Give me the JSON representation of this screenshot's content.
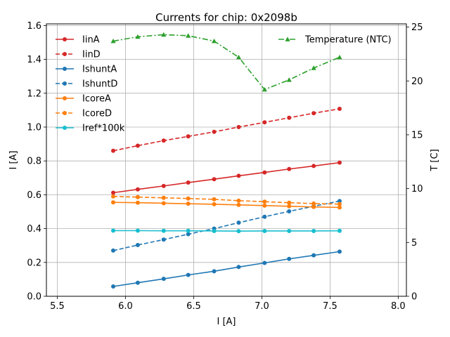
{
  "chart_data": {
    "type": "line",
    "title": "Currents for chip: 0x2098b",
    "xlabel": "I [A]",
    "ylabel": "I [A]",
    "y2label": "T [C]",
    "xlim": [
      5.42,
      8.06
    ],
    "ylim": [
      0.0,
      1.61
    ],
    "y2lim": [
      0.0,
      25.3
    ],
    "xticks": [
      5.5,
      6.0,
      6.5,
      7.0,
      7.5,
      8.0
    ],
    "xtick_labels": [
      "5.5",
      "6.0",
      "6.5",
      "7.0",
      "7.5",
      "8.0"
    ],
    "yticks": [
      0.0,
      0.2,
      0.4,
      0.6,
      0.8,
      1.0,
      1.2,
      1.4,
      1.6
    ],
    "ytick_labels": [
      "0.0",
      "0.2",
      "0.4",
      "0.6",
      "0.8",
      "1.0",
      "1.2",
      "1.4",
      "1.6"
    ],
    "y2ticks": [
      0,
      5,
      10,
      15,
      20,
      25
    ],
    "y2tick_labels": [
      "0",
      "5",
      "10",
      "15",
      "20",
      "25"
    ],
    "grid": true,
    "legend_left_position": "upper-left",
    "legend_right_position": "upper-right",
    "x": [
      5.91,
      6.09,
      6.28,
      6.46,
      6.65,
      6.83,
      7.02,
      7.2,
      7.38,
      7.57
    ],
    "series": [
      {
        "name": "IinA",
        "axis": "left",
        "color": "#d62728",
        "dash": "solid",
        "marker": "circle",
        "values": [
          0.612,
          0.632,
          0.652,
          0.672,
          0.692,
          0.712,
          0.732,
          0.752,
          0.77,
          0.79
        ]
      },
      {
        "name": "IinD",
        "axis": "left",
        "color": "#d62728",
        "dash": "dashed",
        "marker": "circle",
        "values": [
          0.86,
          0.89,
          0.92,
          0.945,
          0.972,
          1.0,
          1.028,
          1.055,
          1.082,
          1.108
        ]
      },
      {
        "name": "IshuntA",
        "axis": "left",
        "color": "#1f77b4",
        "dash": "solid",
        "marker": "circle",
        "values": [
          0.058,
          0.08,
          0.103,
          0.126,
          0.148,
          0.173,
          0.197,
          0.221,
          0.242,
          0.264
        ]
      },
      {
        "name": "IshuntD",
        "axis": "left",
        "color": "#1f77b4",
        "dash": "dashed",
        "marker": "circle",
        "values": [
          0.27,
          0.303,
          0.335,
          0.367,
          0.4,
          0.435,
          0.47,
          0.502,
          0.532,
          0.563
        ]
      },
      {
        "name": "IcoreA",
        "axis": "left",
        "color": "#ff7f0e",
        "dash": "solid",
        "marker": "circle",
        "values": [
          0.555,
          0.553,
          0.55,
          0.547,
          0.544,
          0.54,
          0.536,
          0.532,
          0.528,
          0.525
        ]
      },
      {
        "name": "IcoreD",
        "axis": "left",
        "color": "#ff7f0e",
        "dash": "dashed",
        "marker": "circle",
        "values": [
          0.59,
          0.586,
          0.582,
          0.578,
          0.573,
          0.565,
          0.559,
          0.553,
          0.548,
          0.545
        ]
      },
      {
        "name": "Iref*100k",
        "axis": "left",
        "color": "#17becf",
        "dash": "solid",
        "marker": "circle",
        "values": [
          0.388,
          0.388,
          0.387,
          0.387,
          0.386,
          0.385,
          0.386,
          0.386,
          0.386,
          0.387
        ]
      },
      {
        "name": "Temperature (NTC)",
        "axis": "right",
        "color": "#2ca02c",
        "dash": "dashdot",
        "marker": "triangle",
        "values": [
          23.7,
          24.1,
          24.3,
          24.2,
          23.7,
          22.2,
          19.2,
          20.1,
          21.2,
          22.2
        ]
      }
    ]
  }
}
